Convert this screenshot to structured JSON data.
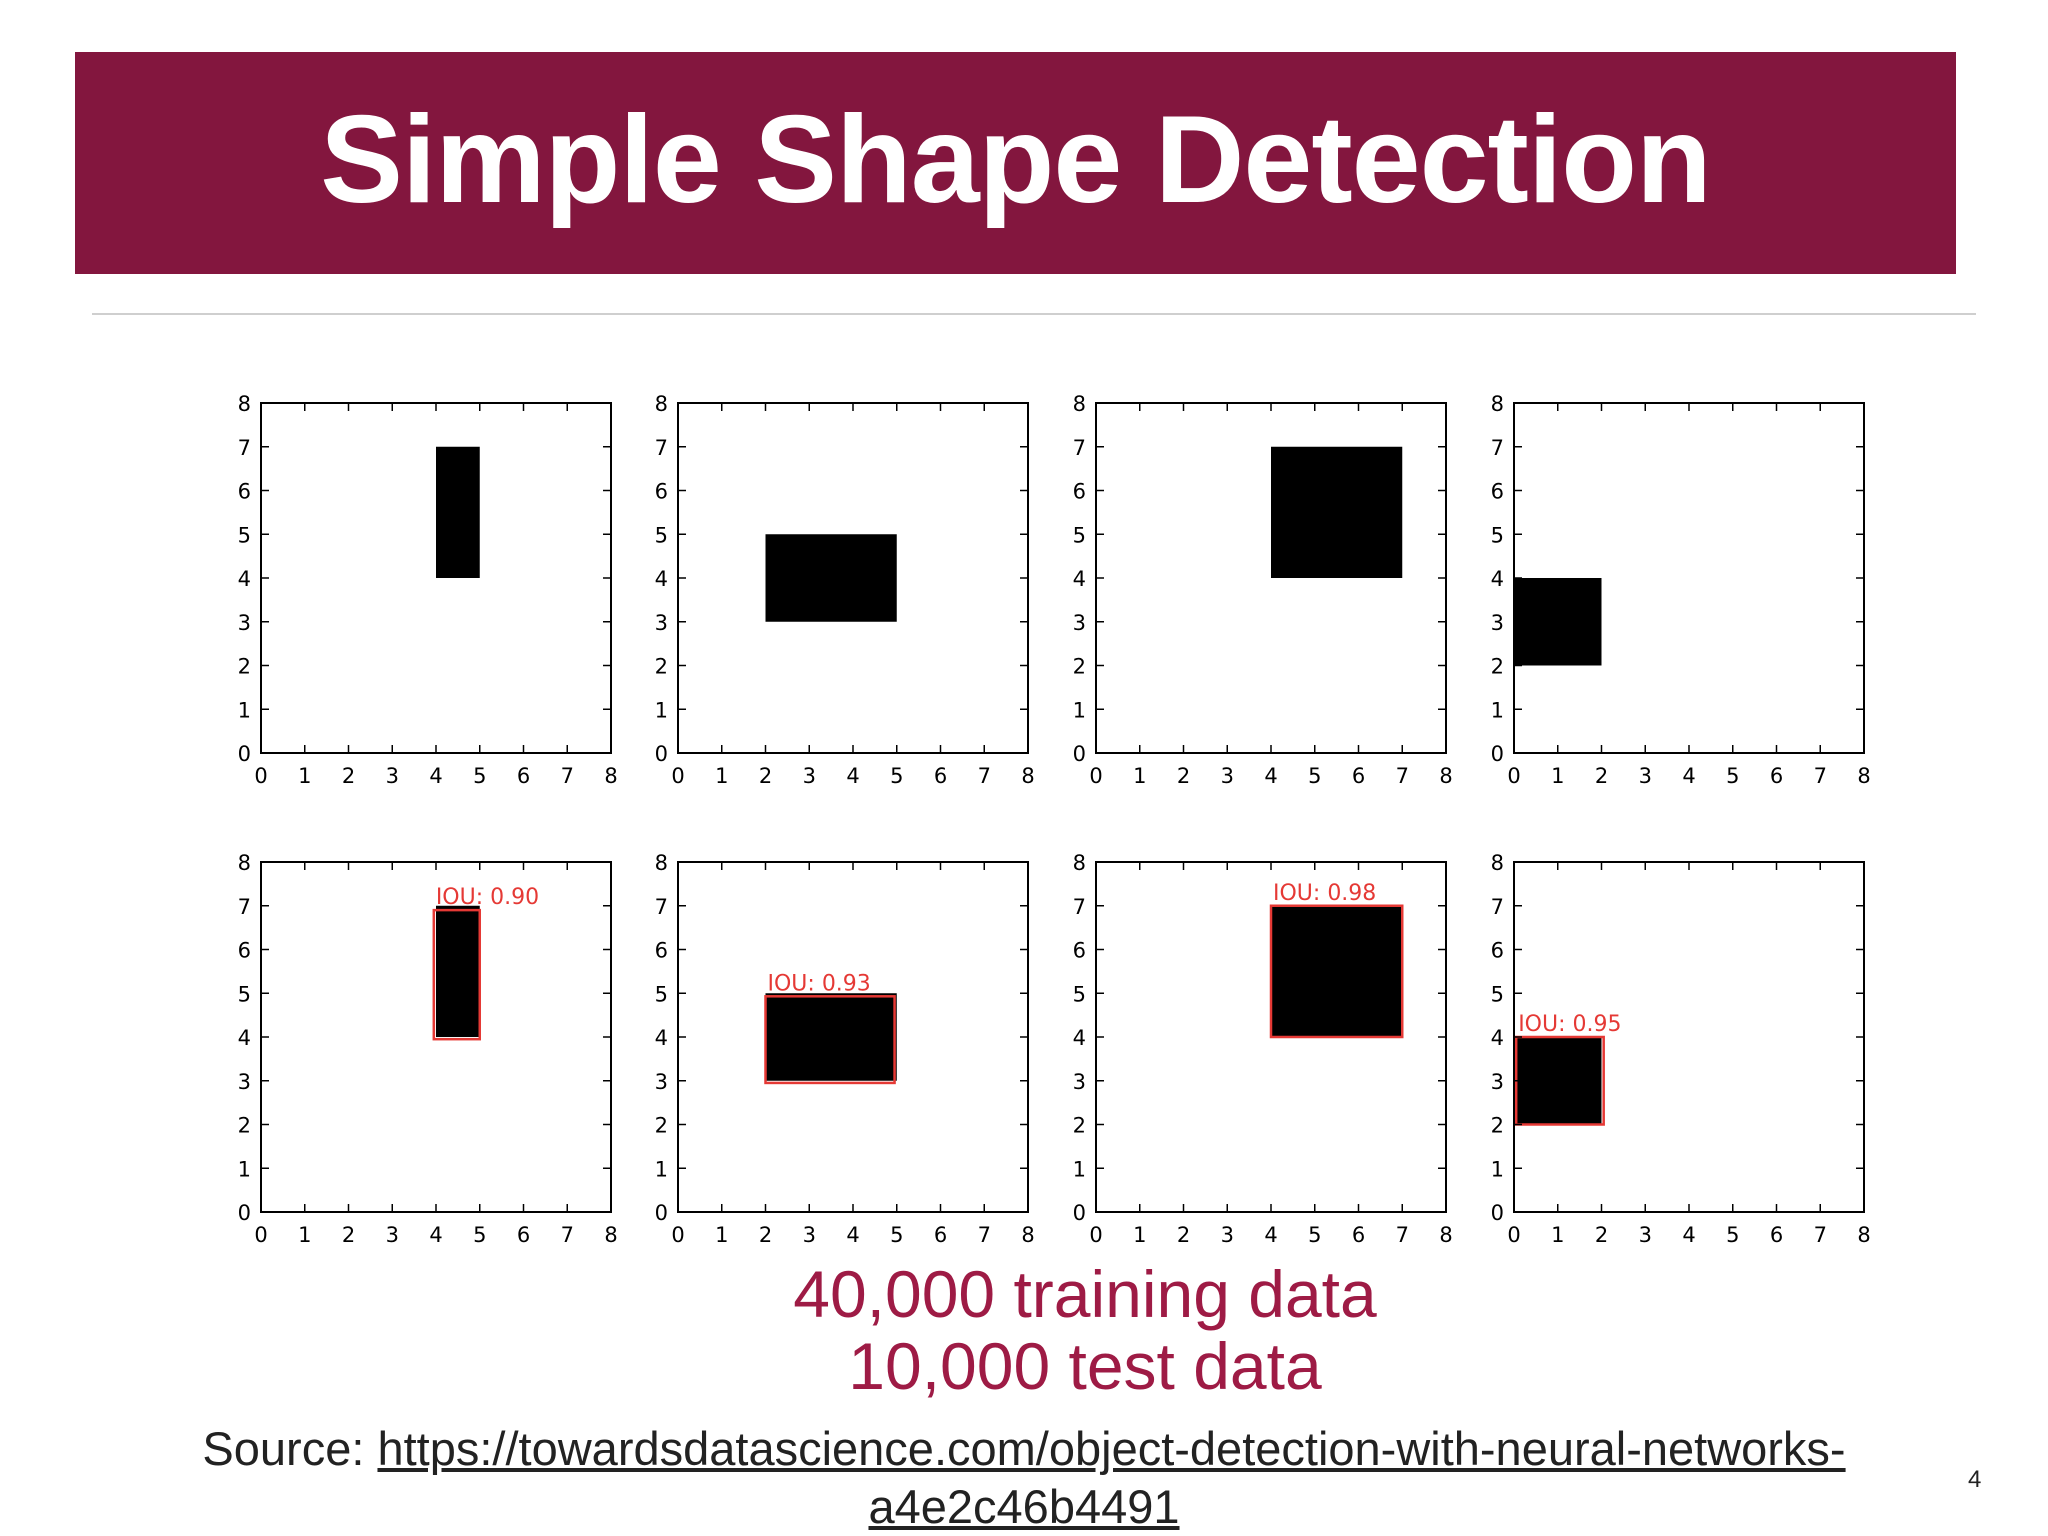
{
  "slide": {
    "title": "Simple Shape Detection",
    "caption_line1": "40,000 training data",
    "caption_line2": "10,000 test data",
    "source_label": "Source: ",
    "source_url_line1": "https://towardsdatascience.com/object-detection-with-neural-networks-",
    "source_url_line2": "a4e2c46b4491",
    "page_number": "4",
    "colors": {
      "title_bar": "#83163e",
      "caption": "#9e1b45",
      "bbox": "#e53935"
    }
  },
  "chart_data": [
    {
      "type": "heatmap",
      "row": "top",
      "xlim": [
        0,
        8
      ],
      "ylim": [
        0,
        8
      ],
      "ticks": [
        0,
        1,
        2,
        3,
        4,
        5,
        6,
        7,
        8
      ],
      "rect": {
        "x": 4,
        "y": 4,
        "w": 1,
        "h": 3
      }
    },
    {
      "type": "heatmap",
      "row": "top",
      "xlim": [
        0,
        8
      ],
      "ylim": [
        0,
        8
      ],
      "ticks": [
        0,
        1,
        2,
        3,
        4,
        5,
        6,
        7,
        8
      ],
      "rect": {
        "x": 2,
        "y": 3,
        "w": 3,
        "h": 2
      }
    },
    {
      "type": "heatmap",
      "row": "top",
      "xlim": [
        0,
        8
      ],
      "ylim": [
        0,
        8
      ],
      "ticks": [
        0,
        1,
        2,
        3,
        4,
        5,
        6,
        7,
        8
      ],
      "rect": {
        "x": 4,
        "y": 4,
        "w": 3,
        "h": 3
      }
    },
    {
      "type": "heatmap",
      "row": "top",
      "xlim": [
        0,
        8
      ],
      "ylim": [
        0,
        8
      ],
      "ticks": [
        0,
        1,
        2,
        3,
        4,
        5,
        6,
        7,
        8
      ],
      "rect": {
        "x": 0,
        "y": 2,
        "w": 2,
        "h": 2
      }
    },
    {
      "type": "heatmap",
      "row": "bottom",
      "xlim": [
        0,
        8
      ],
      "ylim": [
        0,
        8
      ],
      "ticks": [
        0,
        1,
        2,
        3,
        4,
        5,
        6,
        7,
        8
      ],
      "rect": {
        "x": 4,
        "y": 4,
        "w": 1,
        "h": 3
      },
      "prediction": {
        "x": 3.95,
        "y": 3.95,
        "w": 1.05,
        "h": 2.95
      },
      "annotation": "IOU: 0.90"
    },
    {
      "type": "heatmap",
      "row": "bottom",
      "xlim": [
        0,
        8
      ],
      "ylim": [
        0,
        8
      ],
      "ticks": [
        0,
        1,
        2,
        3,
        4,
        5,
        6,
        7,
        8
      ],
      "rect": {
        "x": 2,
        "y": 3,
        "w": 3,
        "h": 2
      },
      "prediction": {
        "x": 2.0,
        "y": 2.95,
        "w": 2.95,
        "h": 1.98
      },
      "annotation": "IOU: 0.93"
    },
    {
      "type": "heatmap",
      "row": "bottom",
      "xlim": [
        0,
        8
      ],
      "ylim": [
        0,
        8
      ],
      "ticks": [
        0,
        1,
        2,
        3,
        4,
        5,
        6,
        7,
        8
      ],
      "rect": {
        "x": 4,
        "y": 4,
        "w": 3,
        "h": 3
      },
      "prediction": {
        "x": 4.0,
        "y": 4.0,
        "w": 3.0,
        "h": 3.0
      },
      "annotation": "IOU: 0.98"
    },
    {
      "type": "heatmap",
      "row": "bottom",
      "xlim": [
        0,
        8
      ],
      "ylim": [
        0,
        8
      ],
      "ticks": [
        0,
        1,
        2,
        3,
        4,
        5,
        6,
        7,
        8
      ],
      "rect": {
        "x": 0,
        "y": 2,
        "w": 2,
        "h": 2
      },
      "prediction": {
        "x": 0.05,
        "y": 2.0,
        "w": 2.0,
        "h": 2.0
      },
      "annotation": "IOU: 0.95"
    }
  ]
}
